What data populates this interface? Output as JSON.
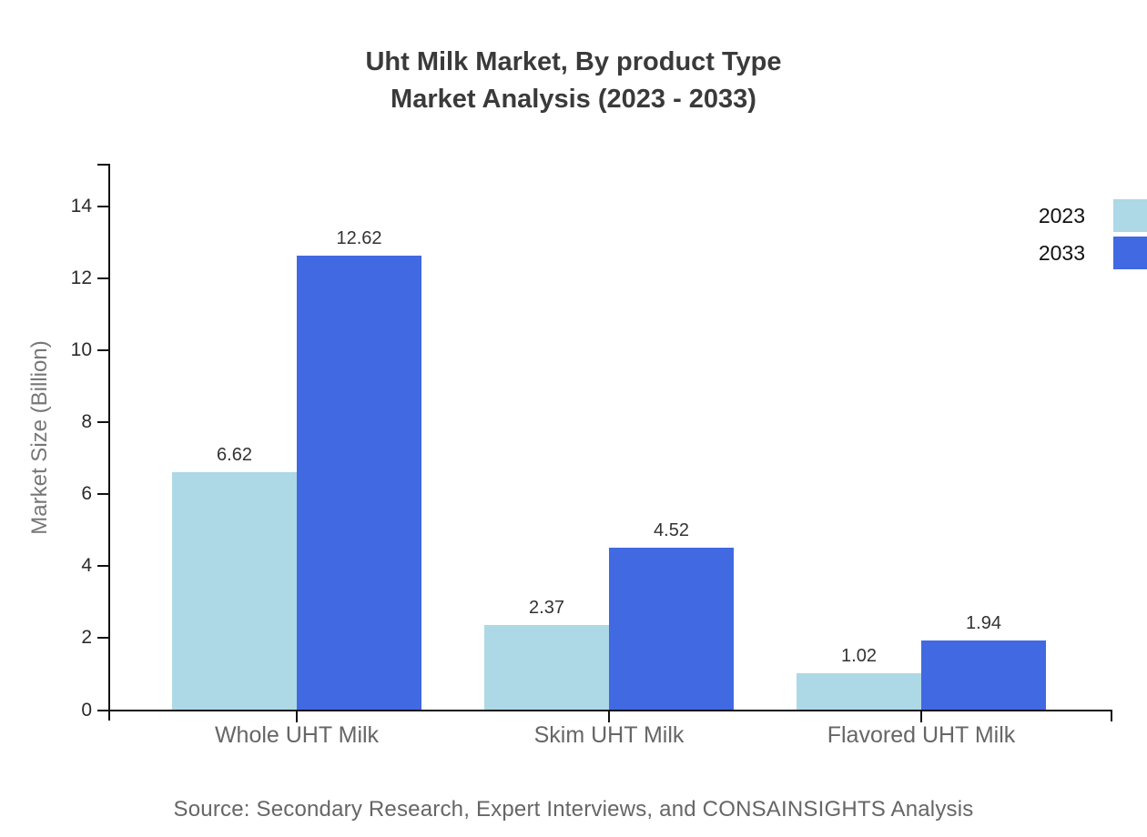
{
  "title": {
    "line1": "Uht Milk Market, By product Type",
    "line2": "Market Analysis (2023 - 2033)"
  },
  "y_axis": {
    "label": "Market Size (Billion)"
  },
  "legend": {
    "position": "right",
    "items": [
      {
        "label": "2023",
        "color": "#ADD8E6"
      },
      {
        "label": "2033",
        "color": "#4169E1"
      }
    ]
  },
  "source": {
    "text": "Source: Secondary Research, Expert Interviews, and CONSAINSIGHTS Analysis"
  },
  "colors": {
    "axis": "#111111",
    "series_2023": "#ADD8E6",
    "series_2033": "#4169E1",
    "title_text": "#3a3a3a",
    "category_text": "#666666",
    "value_text": "#333333",
    "source_text": "#666666"
  },
  "chart_data": {
    "type": "bar",
    "title": "Uht Milk Market, By product Type Market Analysis (2023 - 2033)",
    "categories": [
      "Whole UHT Milk",
      "Skim UHT Milk",
      "Flavored UHT Milk"
    ],
    "series": [
      {
        "name": "2023",
        "color": "#ADD8E6",
        "values": [
          6.62,
          2.37,
          1.02
        ]
      },
      {
        "name": "2033",
        "color": "#4169E1",
        "values": [
          12.62,
          4.52,
          1.94
        ]
      }
    ],
    "value_labels": [
      "6.62",
      "12.62",
      "2.37",
      "4.52",
      "1.02",
      "1.94"
    ],
    "xlabel": "",
    "ylabel": "Market Size (Billion)",
    "ylim": [
      0,
      15.2
    ],
    "yticks": [
      0,
      2,
      4,
      6,
      8,
      10,
      12,
      14
    ],
    "grid": false,
    "legend_position": "right",
    "bar_value_labels_shown": true
  }
}
